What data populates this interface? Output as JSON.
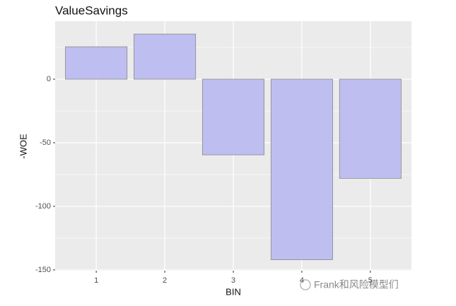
{
  "chart_data": {
    "type": "bar",
    "title": "ValueSavings",
    "x_label": "BIN",
    "y_label": "-WOE",
    "categories": [
      "1",
      "2",
      "3",
      "4",
      "5"
    ],
    "values": [
      25.5,
      35.5,
      -59.5,
      -142,
      -78
    ],
    "color": "#bcbcf0",
    "edge_color": "#8a8a8a",
    "ylim": [
      -150.6,
      45.6
    ],
    "yticks": [
      -150,
      -100,
      -50,
      0
    ],
    "y_minor_ticks": [
      -125,
      -75,
      -25,
      25
    ],
    "grid": true,
    "background": "#ebebeb",
    "watermark": "Frank和风险模型们"
  }
}
